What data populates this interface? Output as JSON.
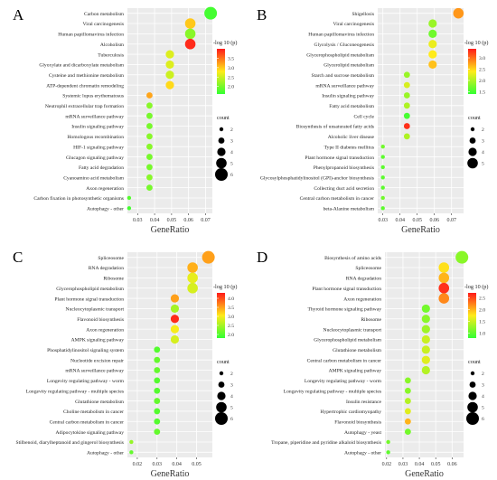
{
  "figure": {
    "background": "#ffffff",
    "panel_bg": "#ebebeb",
    "grid_color": "#ffffff"
  },
  "chart_data": [
    {
      "panel": "A",
      "type": "scatter",
      "xlabel": "GeneRatio",
      "xlim": [
        0.024,
        0.074
      ],
      "xticks": [
        0.03,
        0.04,
        0.05,
        0.06,
        0.07
      ],
      "xtick_labels": [
        "0.03",
        "0.04",
        "0.05",
        "0.06",
        "0.07"
      ],
      "color_scale": {
        "title": "-log 10 (p)",
        "min": 1.6,
        "max": 4.0,
        "low_color": "#33ff33",
        "high_color": "#ff1a1a",
        "ticks": [
          2.0,
          2.5,
          3.0,
          3.5
        ],
        "tick_labels": [
          "2.0",
          "2.5",
          "3.0",
          "3.5"
        ]
      },
      "size_scale": {
        "title": "count",
        "values": [
          2,
          3,
          4,
          5,
          6
        ],
        "labels": [
          "2",
          "3",
          "4",
          "5",
          "6"
        ]
      },
      "terms": [
        "Carbon metabolism",
        "Viral carcinogenesis",
        "Human papillomavirus infection",
        "Alcoholism",
        "Tuberculosis",
        "Glyoxylate and dicarboxylate metabolism",
        "Cysteine and methionine metabolism",
        "ATP-dependent chromatin remodeling",
        "Systemic lupus erythematosus",
        "Neutrophil extracellular trap formation",
        "mRNA surveillance pathway",
        "Insulin signaling pathway",
        "Homologous recombination",
        "HIF-1 signaling pathway",
        "Glucagon signaling pathway",
        "Fatty acid degradation",
        "Cyanoamino acid metabolism",
        "Axon regeneration",
        "Carbon fixation in photosynthetic organisms",
        "Autophagy - other"
      ],
      "x": [
        0.073,
        0.061,
        0.061,
        0.061,
        0.049,
        0.049,
        0.049,
        0.049,
        0.037,
        0.037,
        0.037,
        0.037,
        0.037,
        0.037,
        0.037,
        0.037,
        0.037,
        0.037,
        0.025,
        0.025
      ],
      "count": [
        6,
        5,
        5,
        5,
        4,
        4,
        4,
        4,
        3,
        3,
        3,
        3,
        3,
        3,
        3,
        3,
        3,
        3,
        2,
        2
      ],
      "neglog10p": [
        1.7,
        3.0,
        2.1,
        3.9,
        2.6,
        2.6,
        2.5,
        2.9,
        3.2,
        2.1,
        2.0,
        2.0,
        2.1,
        2.1,
        2.0,
        2.0,
        2.1,
        2.0,
        1.8,
        1.7
      ]
    },
    {
      "panel": "B",
      "type": "scatter",
      "xlabel": "GeneRatio",
      "xlim": [
        0.027,
        0.077
      ],
      "xticks": [
        0.03,
        0.04,
        0.05,
        0.06,
        0.07
      ],
      "xtick_labels": [
        "0.03",
        "0.04",
        "0.05",
        "0.06",
        "0.07"
      ],
      "color_scale": {
        "title": "-log 10 (p)",
        "min": 1.4,
        "max": 3.4,
        "low_color": "#33ff33",
        "high_color": "#ff1a1a",
        "ticks": [
          1.5,
          2.0,
          2.5,
          3.0
        ],
        "tick_labels": [
          "1.5",
          "2.0",
          "2.5",
          "3.0"
        ]
      },
      "size_scale": {
        "title": "count",
        "values": [
          2,
          3,
          4,
          5
        ],
        "labels": [
          "2",
          "3",
          "4",
          "5"
        ]
      },
      "terms": [
        "Shigellosis",
        "Viral carcinogenesis",
        "Human papillomavirus infection",
        "Glycolysis / Gluconeogenesis",
        "Glycerophospholipid metabolism",
        "Glycerolipid metabolism",
        "Starch and sucrose metabolism",
        "mRNA surveillance pathway",
        "Insulin signaling pathway",
        "Fatty acid metabolism",
        "Cell cycle",
        "Biosynthesis of unsaturated fatty acids",
        "Alcoholic liver disease",
        "Type II diabetes mellitus",
        "Plant hormone signal transduction",
        "Phenylpropanoid biosynthesis",
        "Glycosylphosphatidylinositol (GPI)-anchor biosynthesis",
        "Collecting duct acid secretion",
        "Central carbon metabolism in cancer",
        "beta-Alanine metabolism"
      ],
      "x": [
        0.074,
        0.059,
        0.059,
        0.059,
        0.059,
        0.059,
        0.044,
        0.044,
        0.044,
        0.044,
        0.044,
        0.044,
        0.044,
        0.03,
        0.03,
        0.03,
        0.03,
        0.03,
        0.03,
        0.03
      ],
      "count": [
        5,
        4,
        4,
        4,
        4,
        4,
        3,
        3,
        3,
        3,
        3,
        3,
        3,
        2,
        2,
        2,
        2,
        2,
        2,
        2
      ],
      "neglog10p": [
        2.8,
        1.9,
        1.7,
        2.3,
        2.4,
        2.6,
        1.9,
        2.2,
        1.9,
        2.0,
        1.5,
        3.3,
        2.0,
        1.7,
        1.6,
        1.6,
        1.6,
        1.6,
        1.7,
        1.6
      ]
    },
    {
      "panel": "C",
      "type": "scatter",
      "xlabel": "GeneRatio",
      "xlim": [
        0.015,
        0.058
      ],
      "xticks": [
        0.02,
        0.03,
        0.04,
        0.05
      ],
      "xtick_labels": [
        "0.02",
        "0.03",
        "0.04",
        "0.05"
      ],
      "color_scale": {
        "title": "-log 10 (p)",
        "min": 1.8,
        "max": 4.3,
        "low_color": "#33ff33",
        "high_color": "#ff1a1a",
        "ticks": [
          2.0,
          2.5,
          3.0,
          3.5,
          4.0
        ],
        "tick_labels": [
          "2.0",
          "2.5",
          "3.0",
          "3.5",
          "4.0"
        ]
      },
      "size_scale": {
        "title": "count",
        "values": [
          2,
          3,
          4,
          5,
          6
        ],
        "labels": [
          "2",
          "3",
          "4",
          "5",
          "6"
        ]
      },
      "terms": [
        "Spliceosome",
        "RNA degradation",
        "Ribosome",
        "Glycerophospholipid metabolism",
        "Plant hormone signal transduction",
        "Nucleocytoplasmic transport",
        "Flavonoid biosynthesis",
        "Axon regeneration",
        "AMPK signaling pathway",
        "Phosphatidylinositol signaling system",
        "Nucleotide excision repair",
        "mRNA surveillance pathway",
        "Longevity regulating pathway - worm",
        "Longevity regulating pathway - multiple species",
        "Glutathione metabolism",
        "Choline metabolism in cancer",
        "Central carbon metabolism in cancer",
        "Adipocytokine signaling pathway",
        "Stilbenoid, diarylheptanoid and gingerol biosynthesis",
        "Autophagy - other"
      ],
      "x": [
        0.056,
        0.048,
        0.048,
        0.048,
        0.039,
        0.039,
        0.039,
        0.039,
        0.039,
        0.03,
        0.03,
        0.03,
        0.03,
        0.03,
        0.03,
        0.03,
        0.03,
        0.03,
        0.017,
        0.017
      ],
      "count": [
        6,
        5,
        5,
        5,
        4,
        4,
        4,
        4,
        4,
        3,
        3,
        3,
        3,
        3,
        3,
        3,
        3,
        3,
        2,
        2
      ],
      "neglog10p": [
        3.5,
        3.4,
        2.9,
        2.8,
        3.5,
        2.5,
        4.2,
        3.0,
        2.8,
        2.0,
        2.1,
        2.1,
        2.0,
        2.0,
        2.1,
        2.0,
        2.0,
        2.1,
        2.4,
        2.1
      ]
    },
    {
      "panel": "D",
      "type": "scatter",
      "xlabel": "GeneRatio",
      "xlim": [
        0.019,
        0.067
      ],
      "xticks": [
        0.02,
        0.03,
        0.04,
        0.05,
        0.06
      ],
      "xtick_labels": [
        "0.02",
        "0.03",
        "0.04",
        "0.05",
        "0.06"
      ],
      "color_scale": {
        "title": "-log 10 (p)",
        "min": 0.8,
        "max": 2.7,
        "low_color": "#33ff33",
        "high_color": "#ff1a1a",
        "ticks": [
          1.0,
          1.5,
          2.0,
          2.5
        ],
        "tick_labels": [
          "1.0",
          "1.5",
          "2.0",
          "2.5"
        ]
      },
      "size_scale": {
        "title": "count",
        "values": [
          2,
          3,
          4,
          5,
          6
        ],
        "labels": [
          "2",
          "3",
          "4",
          "5",
          "6"
        ]
      },
      "terms": [
        "Biosynthesis of amino acids",
        "Spliceosome",
        "RNA degradation",
        "Plant hormone signal transduction",
        "Axon regeneration",
        "Thyroid hormone signaling pathway",
        "Ribosome",
        "Nucleocytoplasmic transport",
        "Glycerophospholipid metabolism",
        "Glutathione metabolism",
        "Central carbon metabolism in cancer",
        "AMPK signaling pathway",
        "Longevity regulating pathway - worm",
        "Longevity regulating pathway - multiple species",
        "Insulin resistance",
        "Hypertrophic cardiomyopathy",
        "Flavonoid biosynthesis",
        "Autophagy - yeast",
        "Tropane, piperidine and pyridine alkaloid biosynthesis",
        "Autophagy - other"
      ],
      "x": [
        0.066,
        0.055,
        0.055,
        0.055,
        0.055,
        0.044,
        0.044,
        0.044,
        0.044,
        0.044,
        0.044,
        0.044,
        0.033,
        0.033,
        0.033,
        0.033,
        0.033,
        0.033,
        0.021,
        0.021
      ],
      "count": [
        6,
        5,
        5,
        5,
        5,
        4,
        4,
        4,
        4,
        4,
        4,
        4,
        3,
        3,
        3,
        3,
        3,
        3,
        2,
        2
      ],
      "neglog10p": [
        1.2,
        1.8,
        2.0,
        2.6,
        2.2,
        1.1,
        1.2,
        1.3,
        1.5,
        1.5,
        1.6,
        1.4,
        1.2,
        1.2,
        1.4,
        1.6,
        2.0,
        1.1,
        1.1,
        1.0
      ]
    }
  ]
}
